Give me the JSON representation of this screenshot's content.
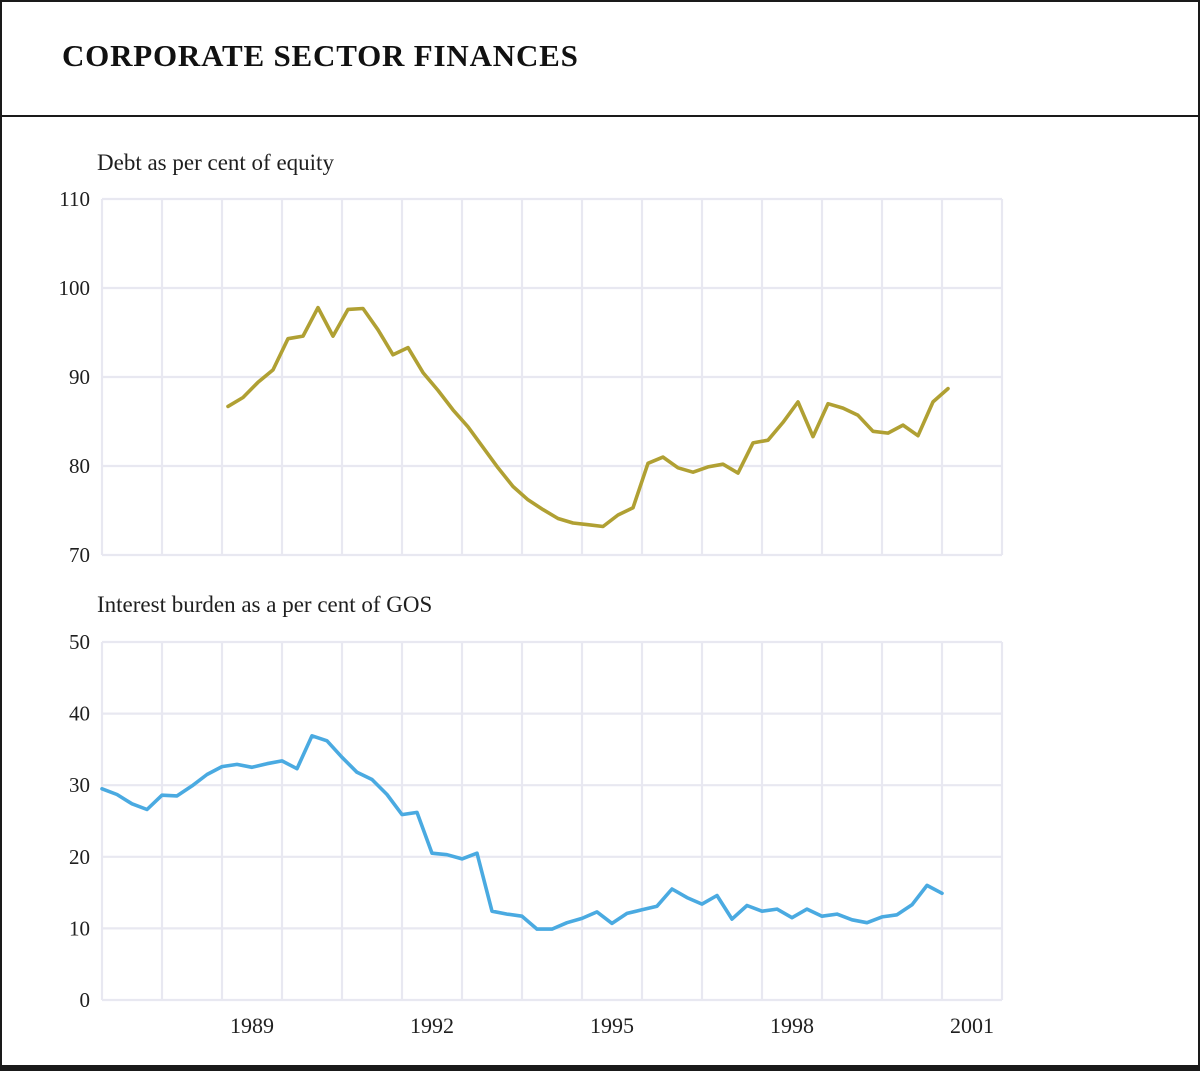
{
  "header": {
    "title": "CORPORATE SECTOR FINANCES"
  },
  "colors": {
    "grid": "#e8e8f1",
    "text": "#1f1f1f",
    "border": "#1a1a1a",
    "background": "#ffffff",
    "debt_line": "#b0a033",
    "interest_line": "#4aaae1"
  },
  "x_axis": {
    "tick_labels": [
      "1989",
      "1992",
      "1995",
      "1998",
      "2001"
    ],
    "tick_centers": [
      1989.5,
      1992.5,
      1995.5,
      1998.5,
      2001.5
    ]
  },
  "chart_data": [
    {
      "type": "line",
      "title": "Debt as per cent of equity",
      "ylim": [
        70,
        110
      ],
      "yticks": [
        110,
        100,
        90,
        80,
        70
      ],
      "xlim": [
        1987,
        2002
      ],
      "grid": true,
      "legend": "none",
      "series": [
        {
          "name": "debt-per-cent-of-equity",
          "color": "#b0a033",
          "x_start": 1989.1,
          "x_step": 0.25,
          "values": [
            86.7,
            87.7,
            89.4,
            90.8,
            94.3,
            94.6,
            97.8,
            94.6,
            97.6,
            97.7,
            95.3,
            92.5,
            93.3,
            90.5,
            88.5,
            86.3,
            84.4,
            82.1,
            79.8,
            77.7,
            76.2,
            75.1,
            74.1,
            73.6,
            73.4,
            73.2,
            74.5,
            75.3,
            80.3,
            81.0,
            79.8,
            79.3,
            79.9,
            80.2,
            79.2,
            82.6,
            82.9,
            84.9,
            87.2,
            83.3,
            87.0,
            86.5,
            85.7,
            83.9,
            83.7,
            84.6,
            83.4,
            87.2,
            88.7
          ]
        }
      ]
    },
    {
      "type": "line",
      "title": "Interest burden as a per cent of GOS",
      "ylim": [
        0,
        50
      ],
      "yticks": [
        50,
        40,
        30,
        20,
        10,
        0
      ],
      "xlim": [
        1987,
        2002
      ],
      "grid": true,
      "legend": "none",
      "series": [
        {
          "name": "interest-burden-per-cent-of-gos",
          "color": "#4aaae1",
          "x_start": 1987.0,
          "x_step": 0.25,
          "values": [
            29.5,
            28.7,
            27.4,
            26.6,
            28.6,
            28.5,
            29.9,
            31.5,
            32.6,
            32.9,
            32.5,
            33.0,
            33.4,
            32.3,
            36.9,
            36.2,
            33.9,
            31.8,
            30.8,
            28.7,
            25.9,
            26.2,
            20.5,
            20.3,
            19.7,
            20.5,
            12.4,
            12.0,
            11.7,
            9.9,
            9.9,
            10.8,
            11.4,
            12.3,
            10.7,
            12.1,
            12.6,
            13.1,
            15.5,
            14.3,
            13.4,
            14.6,
            11.3,
            13.2,
            12.4,
            12.7,
            11.5,
            12.7,
            11.7,
            12.0,
            11.2,
            10.8,
            11.6,
            11.9,
            13.3,
            16.0,
            14.9
          ]
        }
      ]
    }
  ]
}
